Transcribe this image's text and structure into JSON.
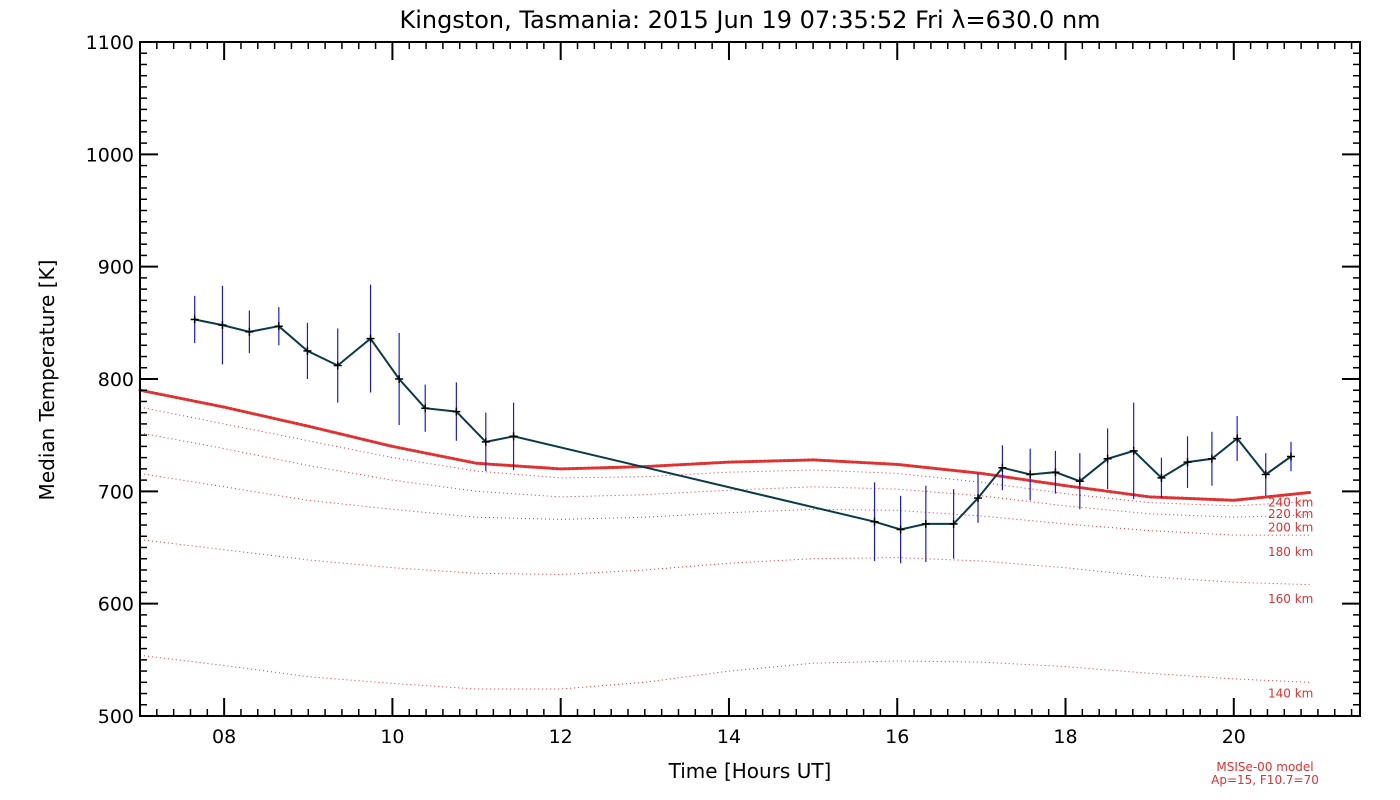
{
  "chart_data": {
    "type": "line",
    "title": "Kingston, Tasmania: 2015 Jun 19 07:35:52 Fri λ=630.0 nm",
    "xlabel": "Time [Hours UT]",
    "ylabel": "Median Temperature [K]",
    "xlim": [
      7.0,
      21.5
    ],
    "ylim": [
      500,
      1100
    ],
    "xticks": [
      8,
      10,
      12,
      14,
      16,
      18,
      20
    ],
    "xtick_labels": [
      "08",
      "10",
      "12",
      "14",
      "16",
      "18",
      "20"
    ],
    "yticks": [
      500,
      600,
      700,
      800,
      900,
      1000,
      1100
    ],
    "ytick_labels": [
      "500",
      "600",
      "700",
      "800",
      "900",
      "1000",
      "1100"
    ],
    "grid": false,
    "colors": {
      "measurement_line": "#0b3a4a",
      "error_bar": "#1a1ae6",
      "model": "#e03030",
      "axes": "#000000"
    },
    "series": [
      {
        "role": "measurement",
        "x": [
          7.65,
          7.98,
          8.3,
          8.65,
          8.99,
          9.35,
          9.74,
          10.08,
          10.39,
          10.76,
          11.11,
          11.44,
          15.73,
          16.04,
          16.34,
          16.67,
          16.96,
          17.25,
          17.58,
          17.88,
          18.17,
          18.5,
          18.81,
          19.14,
          19.45,
          19.74,
          20.04,
          20.38,
          20.68
        ],
        "y": [
          853,
          848,
          842,
          847,
          825,
          812,
          836,
          800,
          774,
          771,
          744,
          749,
          673,
          666,
          671,
          671,
          694,
          721,
          715,
          717,
          709,
          729,
          736,
          712,
          726,
          729,
          747,
          715,
          731
        ],
        "err": [
          21,
          35,
          19,
          17,
          25,
          33,
          48,
          41,
          21,
          26,
          26,
          30,
          35,
          30,
          34,
          31,
          22,
          20,
          23,
          19,
          25,
          27,
          43,
          18,
          23,
          24,
          20,
          19,
          13
        ]
      },
      {
        "role": "model",
        "name": "240 km",
        "x": [
          7.0,
          8.0,
          9.0,
          10.0,
          11.0,
          12.0,
          13.0,
          14.0,
          15.0,
          16.0,
          17.0,
          18.0,
          19.0,
          20.0,
          20.9
        ],
        "y": [
          790,
          775,
          758,
          740,
          725,
          720,
          722,
          726,
          728,
          724,
          716,
          705,
          695,
          692,
          699
        ]
      },
      {
        "role": "model",
        "name": "220 km",
        "x": [
          7.0,
          8.0,
          9.0,
          10.0,
          11.0,
          12.0,
          13.0,
          14.0,
          15.0,
          16.0,
          17.0,
          18.0,
          19.0,
          20.0,
          20.9
        ],
        "y": [
          775,
          760,
          745,
          730,
          718,
          712,
          713,
          717,
          719,
          716,
          708,
          698,
          690,
          687,
          691
        ]
      },
      {
        "role": "model",
        "name": "200 km",
        "x": [
          7.0,
          8.0,
          9.0,
          10.0,
          11.0,
          12.0,
          13.0,
          14.0,
          15.0,
          16.0,
          17.0,
          18.0,
          19.0,
          20.0,
          20.9
        ],
        "y": [
          752,
          738,
          723,
          710,
          700,
          695,
          697,
          701,
          704,
          702,
          696,
          687,
          680,
          677,
          679
        ]
      },
      {
        "role": "model",
        "name": "180 km",
        "x": [
          7.0,
          8.0,
          9.0,
          10.0,
          11.0,
          12.0,
          13.0,
          14.0,
          15.0,
          16.0,
          17.0,
          18.0,
          19.0,
          20.0,
          20.9
        ],
        "y": [
          716,
          704,
          692,
          684,
          677,
          675,
          677,
          681,
          684,
          683,
          678,
          671,
          665,
          661,
          661
        ]
      },
      {
        "role": "model",
        "name": "160 km",
        "x": [
          7.0,
          8.0,
          9.0,
          10.0,
          11.0,
          12.0,
          13.0,
          14.0,
          15.0,
          16.0,
          17.0,
          18.0,
          19.0,
          20.0,
          20.9
        ],
        "y": [
          657,
          648,
          639,
          632,
          627,
          626,
          630,
          636,
          640,
          641,
          638,
          632,
          624,
          619,
          617
        ]
      },
      {
        "role": "model",
        "name": "140 km",
        "x": [
          7.0,
          8.0,
          9.0,
          10.0,
          11.0,
          12.0,
          13.0,
          14.0,
          15.0,
          16.0,
          17.0,
          18.0,
          19.0,
          20.0,
          20.9
        ],
        "y": [
          554,
          545,
          535,
          529,
          524,
          524,
          530,
          540,
          547,
          549,
          548,
          544,
          538,
          533,
          530
        ]
      }
    ],
    "altitude_labels": [
      {
        "text": "240 km",
        "y": 690
      },
      {
        "text": "220 km",
        "y": 680
      },
      {
        "text": "200 km",
        "y": 668
      },
      {
        "text": "180 km",
        "y": 646
      },
      {
        "text": "160 km",
        "y": 604
      },
      {
        "text": "140 km",
        "y": 520
      }
    ],
    "model_note": [
      "MSISe-00 model",
      "Ap=15, F10.7=70"
    ]
  }
}
